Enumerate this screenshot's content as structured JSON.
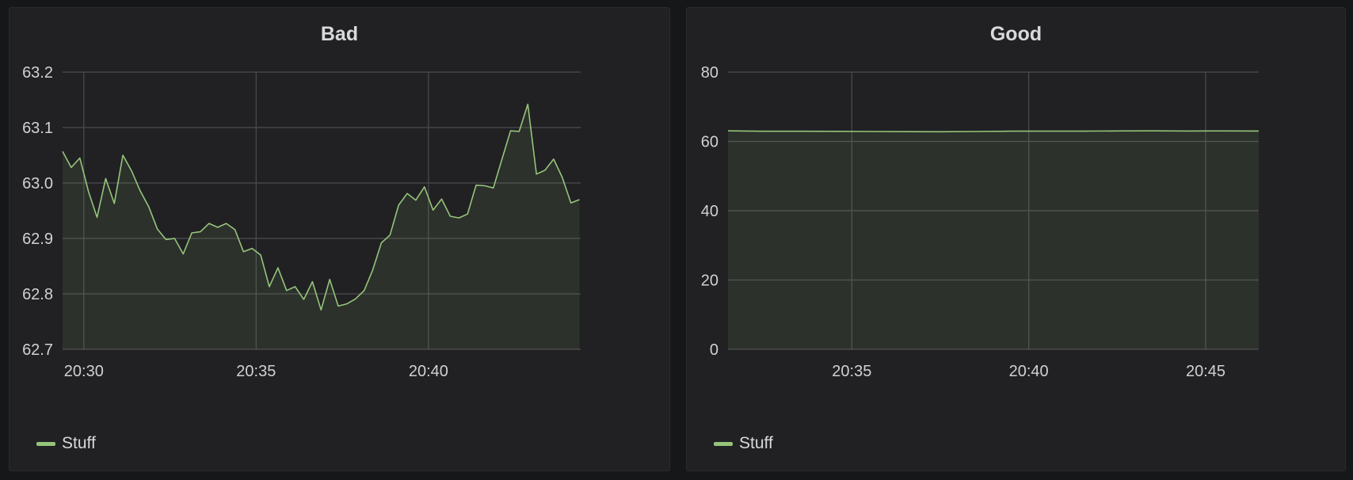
{
  "dashboard": {
    "background_color": "#161719",
    "panel_color": "#212124",
    "series_color": "#96c479",
    "grid_color": "#4b4c4f"
  },
  "chart_data": [
    {
      "type": "area",
      "title": "Bad",
      "xlabel": "",
      "ylabel": "",
      "xlim": [
        "20:29:23",
        "20:44:25"
      ],
      "ylim": [
        62.7,
        63.2
      ],
      "yticks": [
        "62.7",
        "62.8",
        "62.9",
        "63.0",
        "63.1",
        "63.2"
      ],
      "xticks": [
        "20:30",
        "20:35",
        "20:40"
      ],
      "grid": true,
      "legend": "bottom-left",
      "series": [
        {
          "name": "Stuff",
          "color": "#96c479",
          "x": [
            "20:29:23",
            "20:29:38",
            "20:29:53",
            "20:30:08",
            "20:30:23",
            "20:30:38",
            "20:30:53",
            "20:31:08",
            "20:31:23",
            "20:31:38",
            "20:31:53",
            "20:32:08",
            "20:32:23",
            "20:32:38",
            "20:32:53",
            "20:33:08",
            "20:33:23",
            "20:33:38",
            "20:33:53",
            "20:34:08",
            "20:34:23",
            "20:34:38",
            "20:34:53",
            "20:35:08",
            "20:35:23",
            "20:35:38",
            "20:35:53",
            "20:36:08",
            "20:36:23",
            "20:36:38",
            "20:36:53",
            "20:37:08",
            "20:37:23",
            "20:37:38",
            "20:37:53",
            "20:38:08",
            "20:38:23",
            "20:38:38",
            "20:38:53",
            "20:39:08",
            "20:39:23",
            "20:39:38",
            "20:39:53",
            "20:40:08",
            "20:40:23",
            "20:40:38",
            "20:40:53",
            "20:41:08",
            "20:41:23",
            "20:41:38",
            "20:41:53",
            "20:42:08",
            "20:42:23",
            "20:42:38",
            "20:42:53",
            "20:43:08",
            "20:43:23",
            "20:43:38",
            "20:43:53",
            "20:44:08",
            "20:44:23"
          ],
          "values": [
            63.057,
            63.028,
            63.045,
            62.985,
            62.938,
            63.008,
            62.963,
            63.05,
            63.022,
            62.986,
            62.957,
            62.917,
            62.898,
            62.9,
            62.872,
            62.91,
            62.912,
            62.927,
            62.92,
            62.927,
            62.916,
            62.876,
            62.882,
            62.87,
            62.813,
            62.847,
            62.806,
            62.813,
            62.79,
            62.822,
            62.771,
            62.826,
            62.778,
            62.782,
            62.791,
            62.806,
            62.843,
            62.892,
            62.906,
            62.96,
            62.981,
            62.969,
            62.993,
            62.951,
            62.971,
            62.94,
            62.937,
            62.944,
            62.996,
            62.995,
            62.991,
            63.043,
            63.094,
            63.093,
            63.142,
            63.016,
            63.023,
            63.043,
            63.01,
            62.964,
            62.97
          ]
        }
      ]
    },
    {
      "type": "area",
      "title": "Good",
      "xlabel": "",
      "ylabel": "",
      "xlim": [
        "20:31:30",
        "20:46:30"
      ],
      "ylim": [
        0,
        80
      ],
      "yticks": [
        "0",
        "20",
        "40",
        "60",
        "80"
      ],
      "xticks": [
        "20:35",
        "20:40",
        "20:45"
      ],
      "grid": true,
      "legend": "bottom-left",
      "series": [
        {
          "name": "Stuff",
          "color": "#96c479",
          "x": [
            "20:31:30",
            "20:32:30",
            "20:33:30",
            "20:34:30",
            "20:35:30",
            "20:36:30",
            "20:37:30",
            "20:38:30",
            "20:39:30",
            "20:40:30",
            "20:41:30",
            "20:42:30",
            "20:43:30",
            "20:44:30",
            "20:45:30",
            "20:46:30"
          ],
          "values": [
            63.05,
            62.92,
            62.93,
            62.91,
            62.86,
            62.82,
            62.79,
            62.85,
            62.96,
            62.95,
            62.96,
            63.02,
            63.04,
            62.99,
            63.02,
            63.0
          ]
        }
      ]
    }
  ]
}
